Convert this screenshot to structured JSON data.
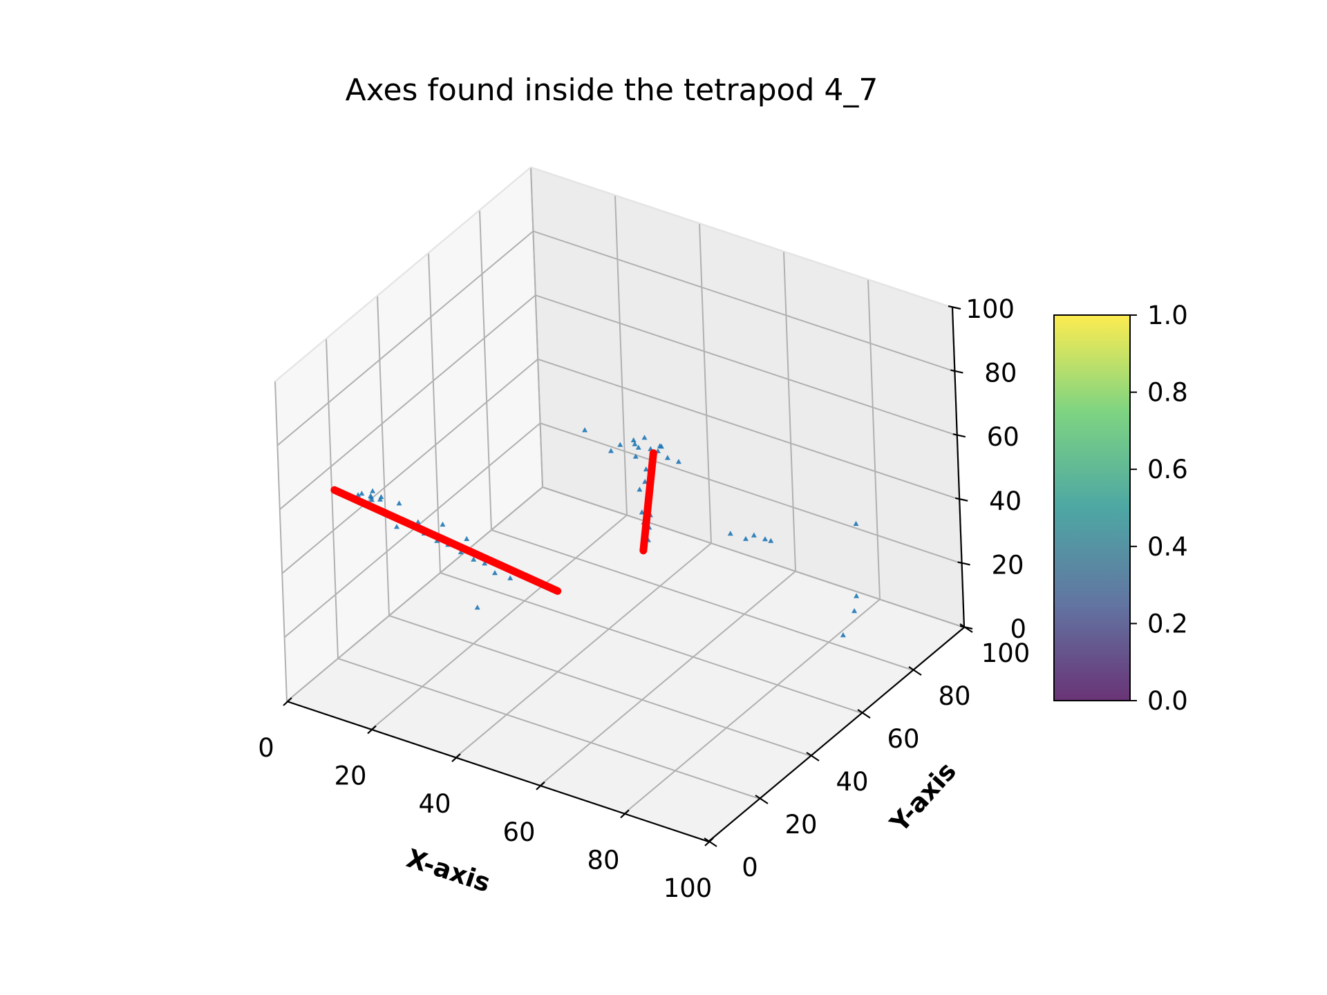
{
  "chart_data": {
    "type": "scatter",
    "projection": "3d",
    "title": "Axes found inside the tetrapod 4_7",
    "xlabel": "X-axis",
    "ylabel": "Y-axis",
    "zlabel": "",
    "xlim": [
      0,
      100
    ],
    "ylim": [
      0,
      100
    ],
    "zlim": [
      0,
      100
    ],
    "xticks": [
      "0",
      "20",
      "40",
      "60",
      "80",
      "100"
    ],
    "yticks": [
      "0",
      "20",
      "40",
      "60",
      "80",
      "100"
    ],
    "zticks": [
      "0",
      "20",
      "40",
      "60",
      "80",
      "100"
    ],
    "grid": true,
    "colors": {
      "points": "#1f77b4",
      "axis_lines": "#ff0000"
    },
    "series": [
      {
        "marker": "triangle",
        "points": [
          [
            5,
            22,
            52
          ],
          [
            7,
            24,
            50
          ],
          [
            6,
            26,
            51
          ],
          [
            8,
            22,
            53
          ],
          [
            4,
            25,
            50
          ],
          [
            6,
            23,
            49
          ],
          [
            9,
            24,
            51
          ],
          [
            7,
            20,
            52
          ],
          [
            5,
            27,
            48
          ],
          [
            8,
            26,
            50
          ],
          [
            12,
            24,
            47
          ],
          [
            14,
            25,
            46
          ],
          [
            16,
            27,
            45
          ],
          [
            18,
            26,
            43
          ],
          [
            21,
            26,
            42
          ],
          [
            23,
            27,
            41
          ],
          [
            26,
            27,
            40
          ],
          [
            29,
            27,
            39
          ],
          [
            31,
            28,
            38
          ],
          [
            34,
            27,
            37
          ],
          [
            37,
            28,
            36
          ],
          [
            20,
            30,
            44
          ],
          [
            25,
            31,
            41
          ],
          [
            14,
            22,
            46
          ],
          [
            11,
            28,
            48
          ],
          [
            38,
            70,
            50
          ],
          [
            40,
            72,
            51
          ],
          [
            42,
            73,
            52
          ],
          [
            44,
            72,
            50
          ],
          [
            46,
            73,
            51
          ],
          [
            48,
            72,
            49
          ],
          [
            37,
            68,
            49
          ],
          [
            39,
            74,
            48
          ],
          [
            43,
            69,
            52
          ],
          [
            45,
            74,
            50
          ],
          [
            47,
            70,
            52
          ],
          [
            50,
            73,
            48
          ],
          [
            41,
            71,
            47
          ],
          [
            44,
            70,
            45
          ],
          [
            43,
            71,
            40
          ],
          [
            43,
            72,
            35
          ],
          [
            42,
            71,
            30
          ],
          [
            43,
            72,
            25
          ],
          [
            42,
            73,
            20
          ],
          [
            44,
            71,
            30
          ],
          [
            41,
            72,
            36
          ],
          [
            43,
            70,
            28
          ],
          [
            29,
            71,
            50
          ],
          [
            58,
            79,
            25
          ],
          [
            61,
            80,
            24
          ],
          [
            63,
            80,
            26
          ],
          [
            65,
            81,
            25
          ],
          [
            67,
            80,
            26
          ],
          [
            80,
            92,
            29
          ],
          [
            82,
            88,
            10
          ],
          [
            82,
            87,
            6
          ],
          [
            81,
            84,
            0
          ],
          [
            20,
            42,
            10
          ]
        ]
      }
    ],
    "axis_lines": [
      {
        "start": [
          0,
          21,
          52
        ],
        "end": [
          47,
          30,
          35
        ]
      },
      {
        "start": [
          44,
          73,
          48
        ],
        "end": [
          42,
          71,
          18
        ]
      }
    ]
  }
}
